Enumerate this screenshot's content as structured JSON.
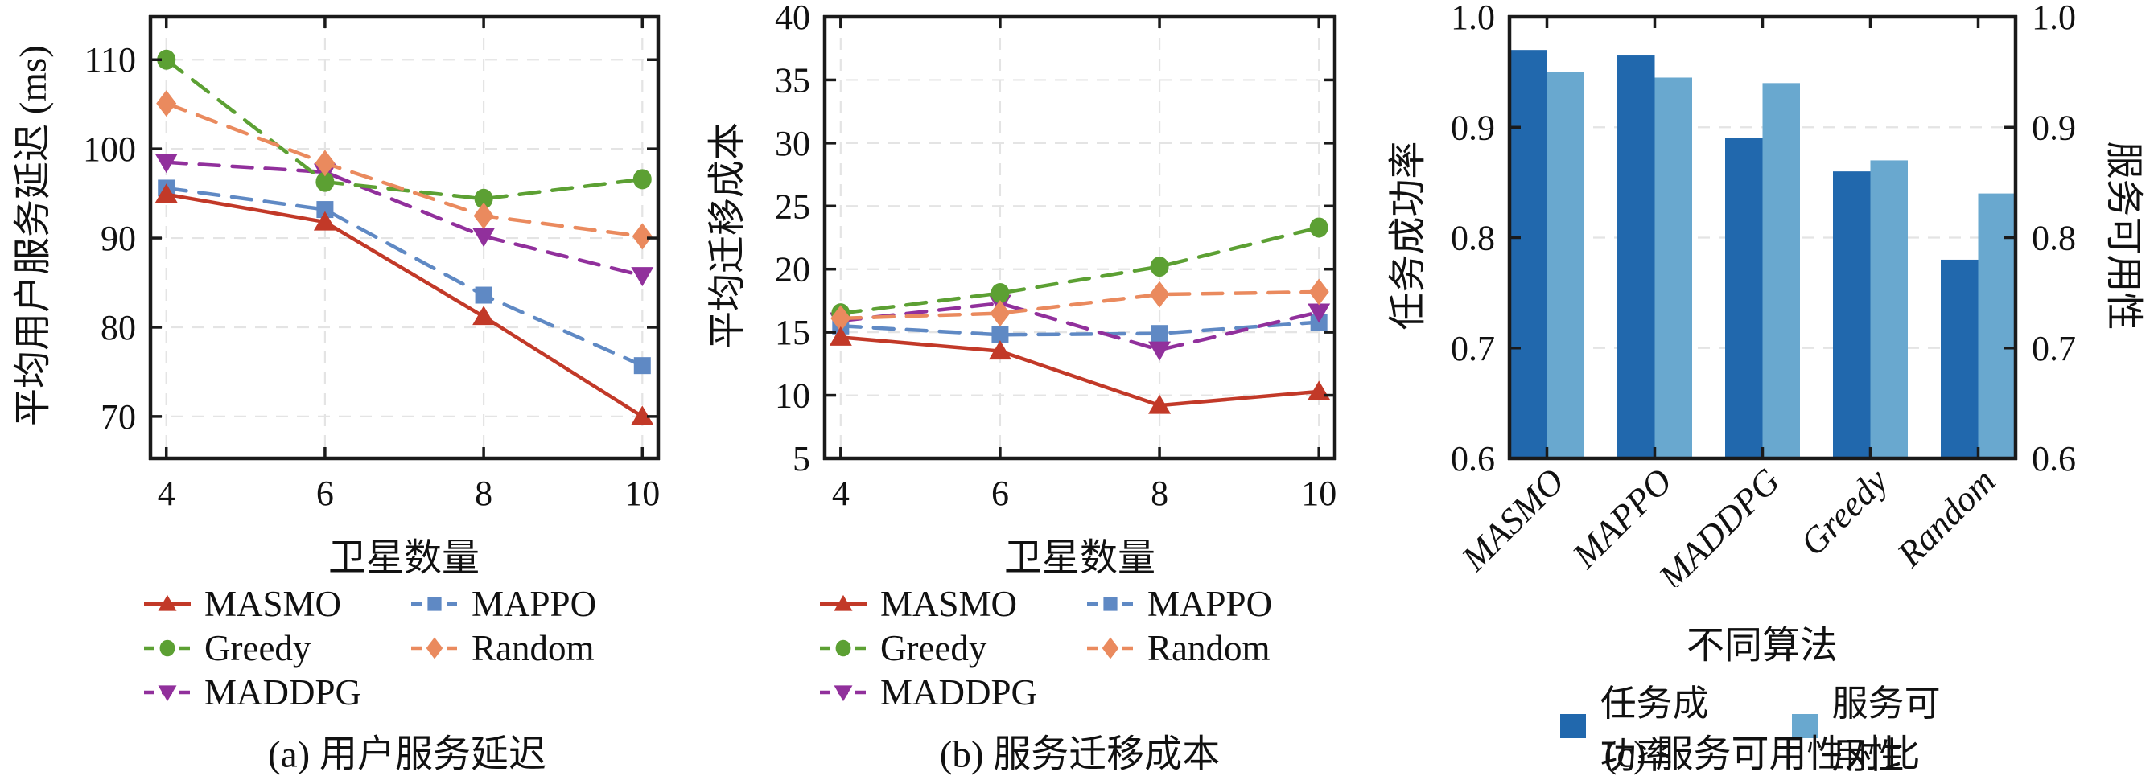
{
  "figure": {
    "background": "#ffffff",
    "grid_color": "#e4e4e4",
    "spine_color": "#1a1a1a"
  },
  "panels": {
    "a": {
      "ylabel": "平均用户服务延迟 (ms)",
      "xlabel": "卫星数量",
      "caption": "(a) 用户服务延迟"
    },
    "b": {
      "ylabel": "平均迁移成本",
      "xlabel": "卫星数量",
      "caption": "(b) 服务迁移成本"
    },
    "c": {
      "ylabel_left": "任务成功率",
      "ylabel_right": "服务可用性",
      "xlabel": "不同算法",
      "caption": "(c) 服务可用性对比"
    }
  },
  "chart_data": [
    {
      "id": "a",
      "type": "line",
      "title": "(a) 用户服务延迟",
      "xlabel": "卫星数量",
      "ylabel": "平均用户服务延迟 (ms)",
      "x": [
        4,
        6,
        8,
        10
      ],
      "xticks": [
        4,
        6,
        8,
        10
      ],
      "yticks": [
        70,
        80,
        90,
        100,
        110
      ],
      "xlim": [
        3.8,
        10.2
      ],
      "ylim": [
        65.3,
        114.8
      ],
      "grid": true,
      "legend_position": "below",
      "series": [
        {
          "name": "MASMO",
          "color": "#c23928",
          "dash": "solid",
          "marker": "triangle-up",
          "z": 5,
          "values": [
            94.9,
            91.8,
            81.2,
            70.0
          ]
        },
        {
          "name": "MAPPO",
          "color": "#5f89c4",
          "dash": "dashed",
          "marker": "square",
          "z": 1,
          "values": [
            95.6,
            93.2,
            83.6,
            75.7
          ]
        },
        {
          "name": "Greedy",
          "color": "#5ca033",
          "dash": "dashed",
          "marker": "circle",
          "z": 3,
          "values": [
            110.0,
            96.3,
            94.4,
            96.6
          ]
        },
        {
          "name": "Random",
          "color": "#ea8a5e",
          "dash": "dashed",
          "marker": "diamond",
          "z": 4,
          "values": [
            105.1,
            98.4,
            92.5,
            90.2
          ]
        },
        {
          "name": "MADDPG",
          "color": "#91309c",
          "dash": "dashed",
          "marker": "triangle-down",
          "z": 2,
          "values": [
            98.5,
            97.4,
            90.2,
            85.8
          ]
        }
      ]
    },
    {
      "id": "b",
      "type": "line",
      "title": "(b) 服务迁移成本",
      "xlabel": "卫星数量",
      "ylabel": "平均迁移成本",
      "x": [
        4,
        6,
        8,
        10
      ],
      "xticks": [
        4,
        6,
        8,
        10
      ],
      "yticks": [
        5,
        10,
        15,
        20,
        25,
        30,
        35,
        40
      ],
      "xlim": [
        3.8,
        10.2
      ],
      "ylim": [
        5,
        40
      ],
      "grid": true,
      "legend_position": "below",
      "series": [
        {
          "name": "MASMO",
          "color": "#c23928",
          "dash": "solid",
          "marker": "triangle-up",
          "z": 5,
          "values": [
            14.6,
            13.5,
            9.2,
            10.3
          ]
        },
        {
          "name": "MAPPO",
          "color": "#5f89c4",
          "dash": "dashed",
          "marker": "square",
          "z": 1,
          "values": [
            15.5,
            14.8,
            14.9,
            15.8
          ]
        },
        {
          "name": "Greedy",
          "color": "#5ca033",
          "dash": "dashed",
          "marker": "circle",
          "z": 3,
          "values": [
            16.5,
            18.1,
            20.2,
            23.3
          ]
        },
        {
          "name": "Random",
          "color": "#ea8a5e",
          "dash": "dashed",
          "marker": "diamond",
          "z": 4,
          "values": [
            16.1,
            16.5,
            18.0,
            18.2
          ]
        },
        {
          "name": "MADDPG",
          "color": "#91309c",
          "dash": "dashed",
          "marker": "triangle-down",
          "z": 2,
          "values": [
            15.9,
            17.3,
            13.6,
            16.6
          ]
        }
      ]
    },
    {
      "id": "c",
      "type": "bar",
      "title": "(c) 服务可用性对比",
      "xlabel": "不同算法",
      "ylabel_left": "任务成功率",
      "ylabel_right": "服务可用性",
      "categories": [
        "MASMO",
        "MAPPO",
        "MADDPG",
        "Greedy",
        "Random"
      ],
      "yticks": [
        0.6,
        0.7,
        0.8,
        0.9,
        1.0
      ],
      "ylim": [
        0.6,
        1.0
      ],
      "grid": true,
      "legend_position": "below",
      "series": [
        {
          "name": "任务成功率",
          "color": "#2168ad",
          "values": [
            0.97,
            0.965,
            0.89,
            0.86,
            0.78
          ]
        },
        {
          "name": "服务可用性",
          "color": "#69a8cf",
          "values": [
            0.95,
            0.945,
            0.94,
            0.87,
            0.84
          ]
        }
      ]
    }
  ]
}
